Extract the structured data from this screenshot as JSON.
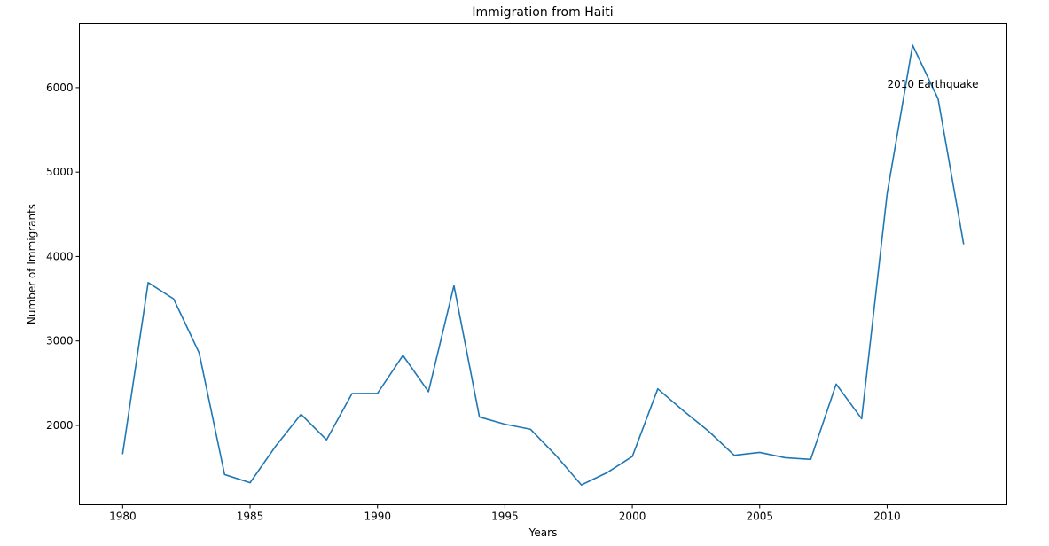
{
  "chart_data": {
    "type": "line",
    "title": "Immigration from Haiti",
    "xlabel": "Years",
    "ylabel": "Number of Immigrants",
    "xlim": [
      1978.3,
      2014.7
    ],
    "ylim": [
      1060,
      6760
    ],
    "xticks": [
      1980,
      1985,
      1990,
      1995,
      2000,
      2005,
      2010
    ],
    "yticks": [
      2000,
      3000,
      4000,
      5000,
      6000
    ],
    "grid": false,
    "series": [
      {
        "color": "#1f77b4",
        "x": [
          1980,
          1981,
          1982,
          1983,
          1984,
          1985,
          1986,
          1987,
          1988,
          1989,
          1990,
          1991,
          1992,
          1993,
          1994,
          1995,
          1996,
          1997,
          1998,
          1999,
          2000,
          2001,
          2002,
          2003,
          2004,
          2005,
          2006,
          2007,
          2008,
          2009,
          2010,
          2011,
          2012,
          2013
        ],
        "y": [
          1666,
          3692,
          3498,
          2860,
          1418,
          1321,
          1753,
          2132,
          1829,
          2377,
          2379,
          2829,
          2399,
          3655,
          2100,
          2014,
          1955,
          1645,
          1295,
          1439,
          1631,
          2433,
          2174,
          1930,
          1646,
          1680,
          1617,
          1597,
          2489,
          2079,
          4744,
          6503,
          5868,
          4152
        ]
      }
    ],
    "annotations": [
      {
        "text": "2010 Earthquake",
        "x": 2010,
        "y": 6000
      }
    ]
  }
}
